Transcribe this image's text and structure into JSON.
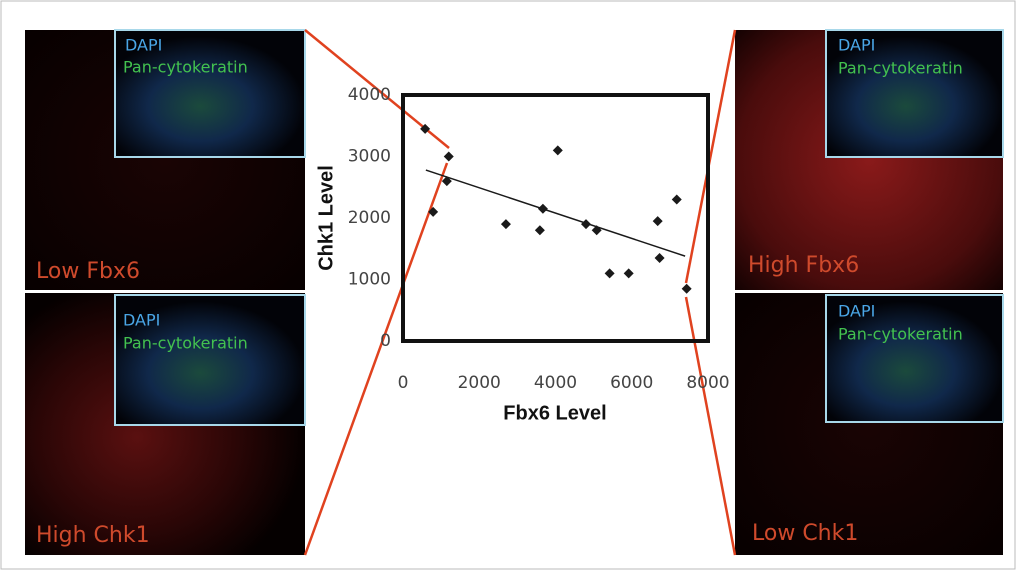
{
  "chart_data": {
    "type": "scatter",
    "x_label": "Fbx6 Level",
    "y_label": "Chk1 Level",
    "x": [
      580,
      790,
      1150,
      1200,
      2700,
      3590,
      3670,
      4060,
      4800,
      5080,
      5420,
      5920,
      6680,
      6730,
      7180,
      7440
    ],
    "values": [
      3450,
      2100,
      2600,
      3000,
      1900,
      1800,
      2150,
      3100,
      1900,
      1800,
      1100,
      1100,
      1950,
      1350,
      2300,
      850
    ],
    "color": "#1a1a1a",
    "trendline": {
      "x": [
        600,
        7400
      ],
      "values": [
        2780,
        1380
      ],
      "color": "#1a1a1a"
    },
    "xlim": [
      0,
      8000
    ],
    "xticks": [
      0,
      2000,
      4000,
      6000,
      8000
    ],
    "ylim": [
      0,
      4000
    ],
    "yticks": [
      0,
      1000,
      2000,
      3000,
      4000
    ]
  },
  "panels": [
    {
      "inset": [
        "DAPI",
        "Pan-cytokeratin"
      ],
      "label": "Low Fbx6"
    },
    {
      "inset": [
        "DAPI",
        "Pan-cytokeratin"
      ],
      "label": "High Chk1"
    },
    {
      "inset": [
        "DAPI",
        "Pan-cytokeratin"
      ],
      "label": "High Fbx6"
    },
    {
      "inset": [
        "DAPI",
        "Pan-cytokeratin"
      ],
      "label": "Low Chk1"
    }
  ]
}
